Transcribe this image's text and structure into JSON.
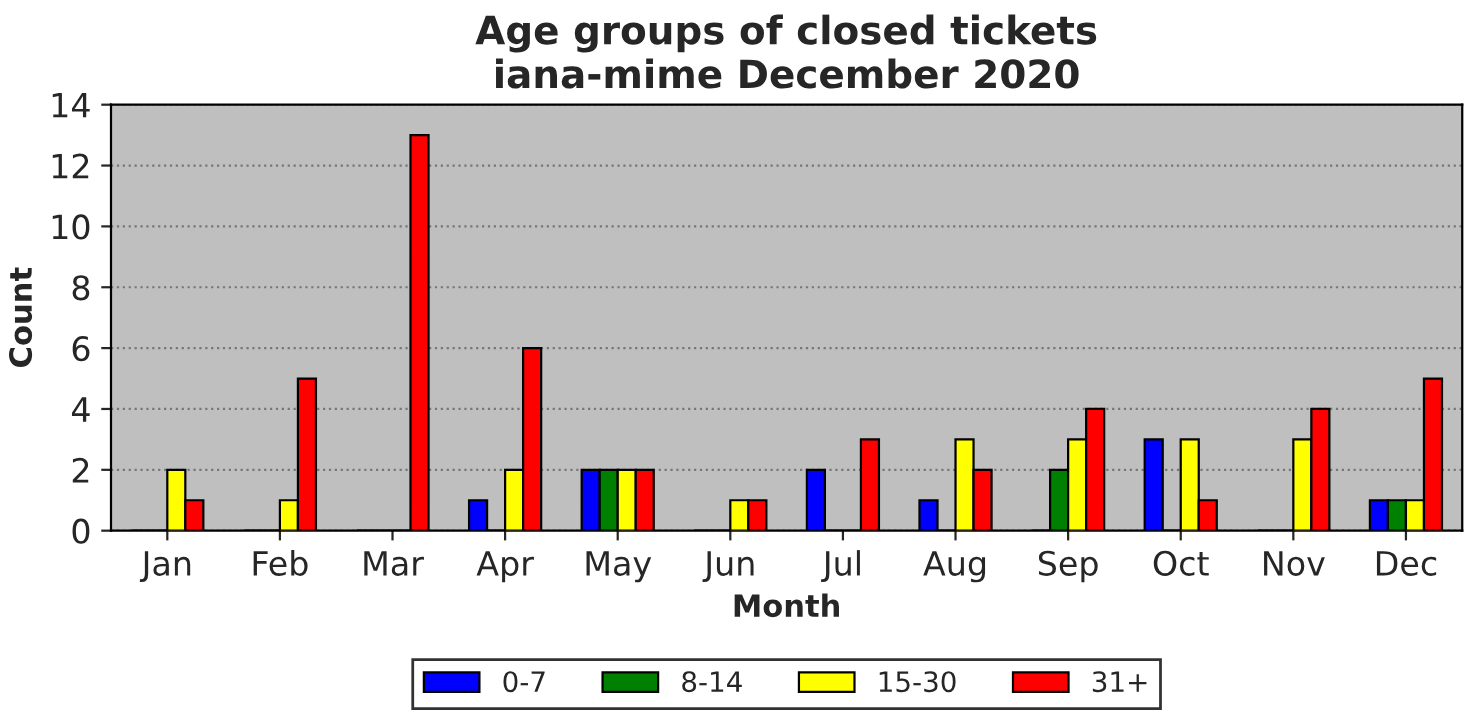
{
  "chart_data": {
    "type": "bar",
    "title": "Age groups of closed tickets\niana-mime December 2020",
    "xlabel": "Month",
    "ylabel": "Count",
    "categories": [
      "Jan",
      "Feb",
      "Mar",
      "Apr",
      "May",
      "Jun",
      "Jul",
      "Aug",
      "Sep",
      "Oct",
      "Nov",
      "Dec"
    ],
    "series": [
      {
        "name": "0-7",
        "color": "#0000ff",
        "values": [
          0,
          0,
          0,
          1,
          2,
          0,
          2,
          1,
          0,
          3,
          0,
          1
        ]
      },
      {
        "name": "8-14",
        "color": "#008000",
        "values": [
          0,
          0,
          0,
          0,
          2,
          0,
          0,
          0,
          2,
          0,
          0,
          1
        ]
      },
      {
        "name": "15-30",
        "color": "#ffff00",
        "values": [
          2,
          1,
          0,
          2,
          2,
          1,
          0,
          3,
          3,
          3,
          3,
          1
        ]
      },
      {
        "name": "31+",
        "color": "#ff0000",
        "values": [
          1,
          5,
          13,
          6,
          2,
          1,
          3,
          2,
          4,
          1,
          4,
          5
        ]
      }
    ],
    "ylim": [
      0,
      14
    ],
    "yticks": [
      0,
      2,
      4,
      6,
      8,
      10,
      12,
      14
    ],
    "grid": "y",
    "legend": "bottom"
  }
}
